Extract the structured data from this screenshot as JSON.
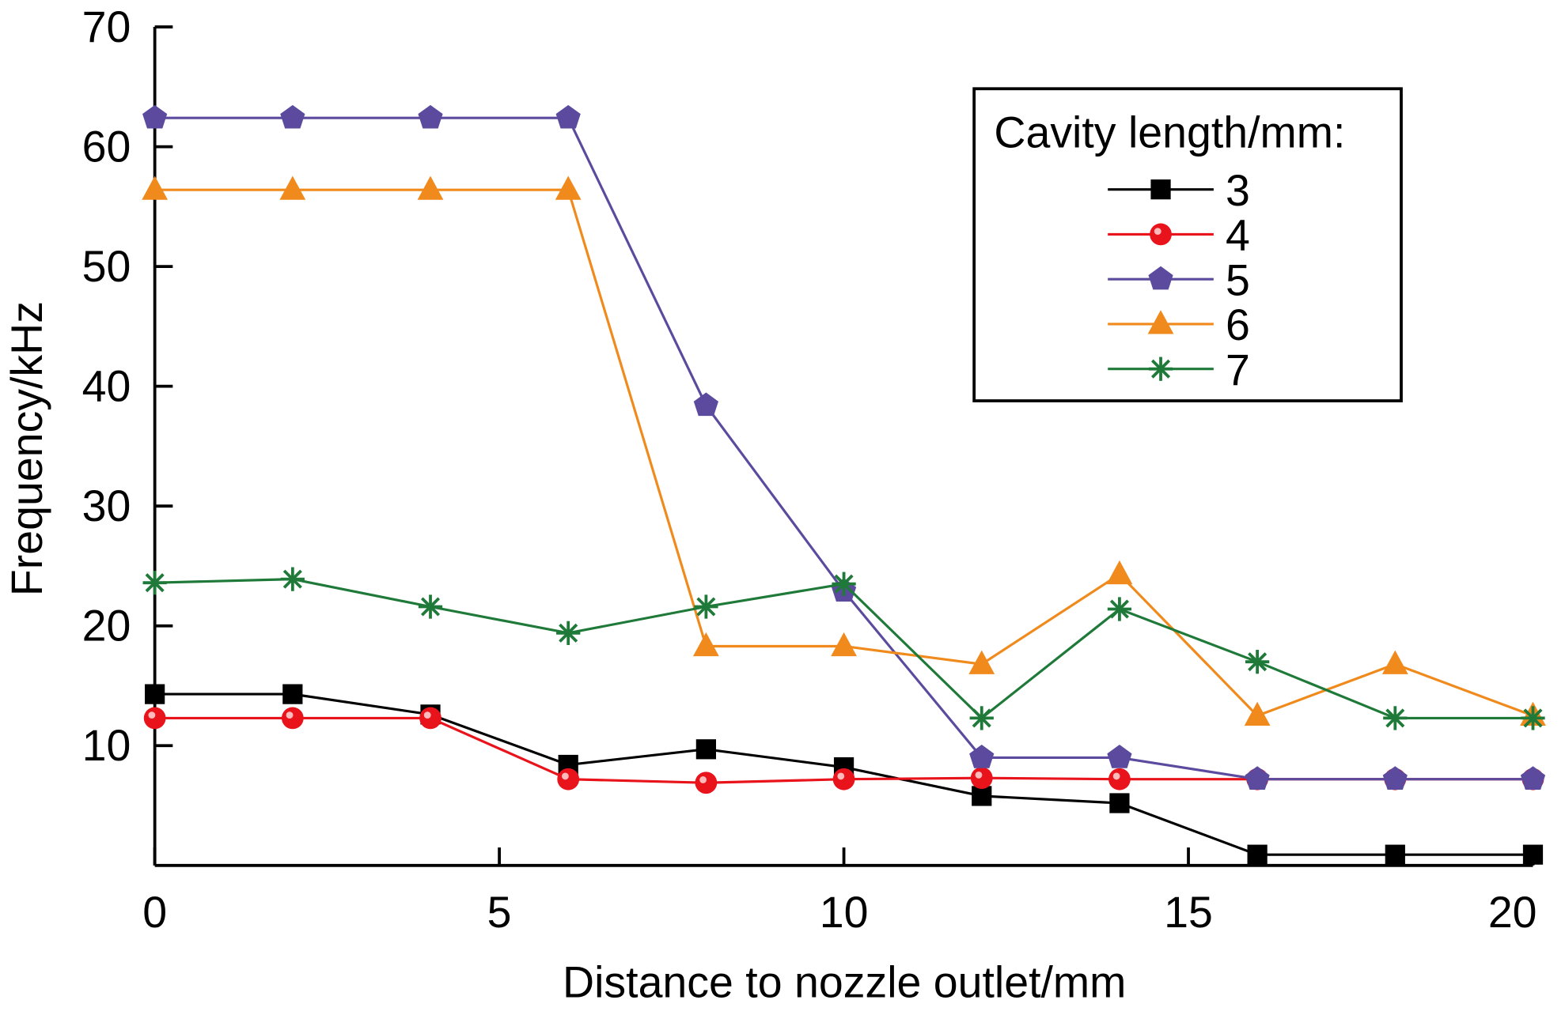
{
  "chart_data": {
    "type": "line",
    "title": "",
    "xlabel": "Distance to nozzle outlet/mm",
    "ylabel": "Frequency/kHz",
    "xlim": [
      0,
      20
    ],
    "ylim": [
      0,
      70
    ],
    "xticks": [
      0,
      5,
      10,
      15,
      20
    ],
    "yticks": [
      10,
      20,
      30,
      40,
      50,
      60,
      70
    ],
    "grid": false,
    "legend": {
      "title": "Cavity length/mm:",
      "placement": "top-right"
    },
    "x": [
      0,
      2,
      4,
      6,
      8,
      10,
      12,
      14,
      16,
      18,
      20
    ],
    "series": [
      {
        "name": "3",
        "color": "#000000",
        "marker": "square",
        "values": [
          14.3,
          14.3,
          12.6,
          8.4,
          9.7,
          8.2,
          5.8,
          5.2,
          0.9,
          0.9,
          0.9
        ]
      },
      {
        "name": "4",
        "color": "#e8131b",
        "marker": "circle",
        "values": [
          12.3,
          12.3,
          12.3,
          7.2,
          6.9,
          7.2,
          7.3,
          7.2,
          7.2,
          7.2,
          7.2
        ]
      },
      {
        "name": "5",
        "color": "#5b4a9e",
        "marker": "pentagon",
        "values": [
          62.4,
          62.4,
          62.4,
          62.4,
          38.4,
          22.9,
          9.0,
          9.0,
          7.2,
          7.2,
          7.2
        ]
      },
      {
        "name": "6",
        "color": "#f08a1c",
        "marker": "triangle",
        "values": [
          56.4,
          56.4,
          56.4,
          56.4,
          18.3,
          18.3,
          16.8,
          24.3,
          12.5,
          16.8,
          12.5
        ]
      },
      {
        "name": "7",
        "color": "#1f7a3a",
        "marker": "asterisk",
        "values": [
          23.6,
          23.9,
          21.6,
          19.4,
          21.6,
          23.5,
          12.3,
          21.4,
          17.0,
          12.3,
          12.3
        ]
      }
    ]
  }
}
